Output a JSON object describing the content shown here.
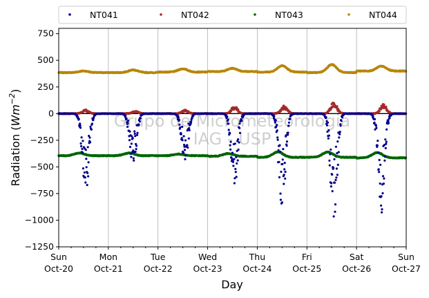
{
  "chart_data": {
    "type": "scatter",
    "title": "",
    "xlabel": "Day",
    "ylabel": "Radiation (Wm⁻²)",
    "ylabel_main": "Radiation (",
    "ylabel_unit": "Wm",
    "ylabel_exp": "−2",
    "ylabel_close": ")",
    "ylim": [
      -1250,
      800
    ],
    "yticks": [
      -1250,
      -1000,
      -750,
      -500,
      -250,
      0,
      250,
      500,
      750
    ],
    "ytick_labels": [
      "−1250",
      "−1000",
      "−750",
      "−500",
      "−250",
      "0",
      "250",
      "500",
      "750"
    ],
    "xlim_days": [
      0,
      7
    ],
    "xticks": [
      {
        "day": 0,
        "dow": "Sun",
        "date": "Oct-20"
      },
      {
        "day": 1,
        "dow": "Mon",
        "date": "Oct-21"
      },
      {
        "day": 2,
        "dow": "Tue",
        "date": "Oct-22"
      },
      {
        "day": 3,
        "dow": "Wed",
        "date": "Oct-23"
      },
      {
        "day": 4,
        "dow": "Thu",
        "date": "Oct-24"
      },
      {
        "day": 5,
        "dow": "Fri",
        "date": "Oct-25"
      },
      {
        "day": 6,
        "dow": "Sat",
        "date": "Oct-26"
      },
      {
        "day": 7,
        "dow": "Sun",
        "date": "Oct-27"
      }
    ],
    "grid": "vertical",
    "zero_line": 0,
    "legend_placement": "top, above plot",
    "watermark_lines": [
      "Grupo de Micrometeorologia",
      "IAG - USP"
    ],
    "series": [
      {
        "name": "NT041",
        "color": "#00008b",
        "baseline": 0,
        "daily_minimum": [
          -760,
          -500,
          -440,
          -700,
          -860,
          -1040,
          -900
        ],
        "daily_peak_hour": [
          13,
          12,
          13,
          13,
          12,
          13,
          12
        ]
      },
      {
        "name": "NT042",
        "color": "#a52a2a",
        "baseline": 0,
        "daily_peak": [
          35,
          25,
          35,
          70,
          75,
          110,
          90
        ]
      },
      {
        "name": "NT043",
        "color": "#006400",
        "baseline": -380,
        "daily_peak": [
          -370,
          -370,
          -380,
          -375,
          -360,
          -360,
          -365
        ],
        "daily_low": [
          -395,
          -395,
          -395,
          -400,
          -410,
          -410,
          -415
        ]
      },
      {
        "name": "NT044",
        "color": "#b8860b",
        "baseline": 390,
        "daily_peak": [
          400,
          410,
          420,
          425,
          450,
          460,
          445
        ],
        "daily_low": [
          385,
          385,
          390,
          395,
          390,
          385,
          400
        ]
      }
    ]
  }
}
